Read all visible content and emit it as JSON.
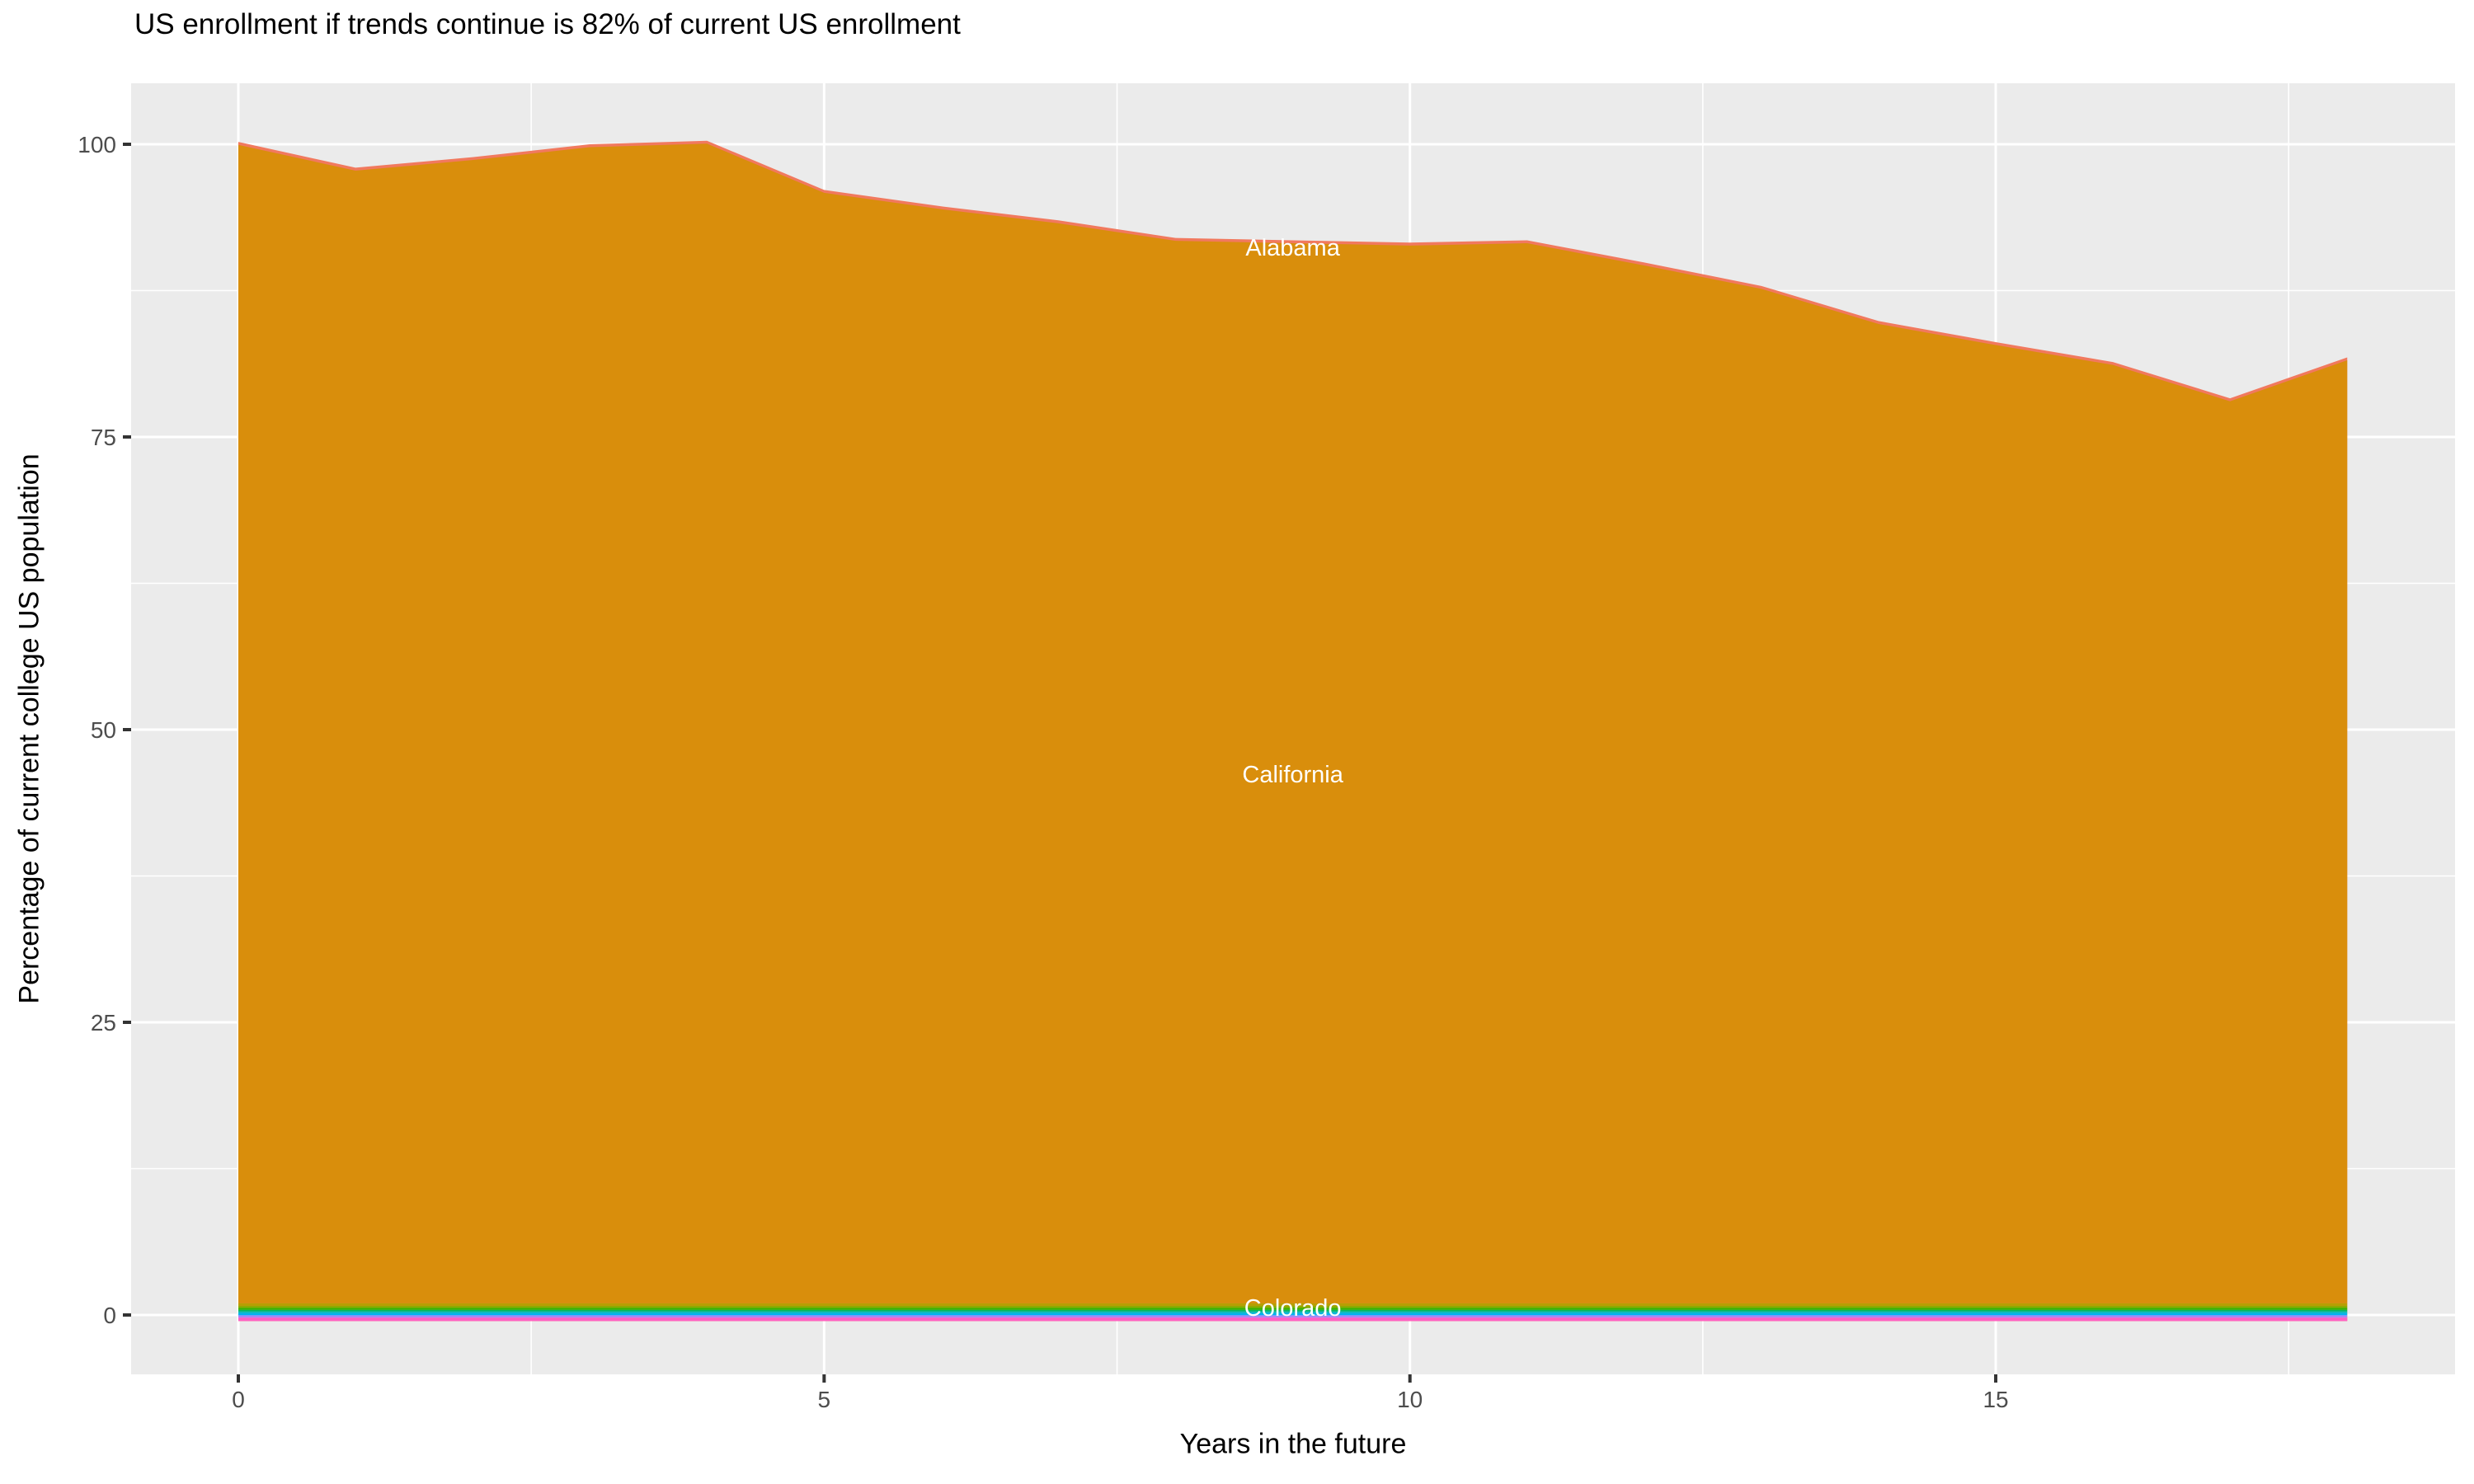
{
  "chart_data": {
    "type": "area",
    "stacked": true,
    "title": "US enrollment if trends continue is 82% of current US enrollment",
    "xlabel": "Years in the future",
    "ylabel": "Percentage of current college US population",
    "legend_position": "none",
    "grid": "on",
    "panel_color": "#EBEBEB",
    "grid_color": "#FFFFFF",
    "tick_color": "#333333",
    "tick_label_color": "#4D4D4D",
    "x": [
      0,
      1,
      2,
      3,
      4,
      5,
      6,
      7,
      8,
      9,
      10,
      11,
      12,
      13,
      14,
      15,
      16,
      17,
      18
    ],
    "x_ticks": [
      0,
      5,
      10,
      15
    ],
    "x_minor_ticks": [
      2.5,
      7.5,
      12.5,
      17.5
    ],
    "y_ticks": [
      0,
      25,
      50,
      75,
      100
    ],
    "y_minor_ticks": [
      12.5,
      37.5,
      62.5,
      87.5
    ],
    "xlim": [
      0,
      18
    ],
    "ylim": [
      -0.6,
      100.4
    ],
    "stack_total_pct": [
      100.2,
      98.0,
      98.9,
      100.0,
      100.3,
      96.1,
      94.7,
      93.5,
      92.0,
      91.8,
      91.6,
      91.8,
      89.9,
      87.9,
      84.9,
      83.1,
      81.4,
      78.3,
      81.8
    ],
    "top_sliver_band": {
      "label": "Alabama",
      "color": "#F1795E",
      "thickness_pct": 0.25
    },
    "main_band": {
      "label": "California",
      "color": "#D98E0C",
      "bottom_pct": 1.0
    },
    "bottom_strips": [
      {
        "color": "#B79F00",
        "from_pct": 1.0,
        "to_pct": 0.78
      },
      {
        "color": "#8CAB00",
        "from_pct": 0.78,
        "to_pct": 0.62
      },
      {
        "color": "#39B600",
        "from_pct": 0.62,
        "to_pct": 0.44
      },
      {
        "color": "#00BB62",
        "from_pct": 0.44,
        "to_pct": 0.3
      },
      {
        "color": "#00BFC4",
        "from_pct": 0.3,
        "to_pct": 0.16
      },
      {
        "color": "#00B4F0",
        "from_pct": 0.16,
        "to_pct": 0.0
      },
      {
        "color": "#7997FF",
        "from_pct": 0.0,
        "to_pct": -0.12
      },
      {
        "color": "#B983FF",
        "from_pct": -0.12,
        "to_pct": -0.24
      },
      {
        "color": "#FF61C3",
        "from_pct": -0.24,
        "to_pct": -0.52
      }
    ],
    "annotations": [
      {
        "label": "Alabama",
        "x": 9,
        "y_pct": 91.2,
        "color": "#FFFFFF"
      },
      {
        "label": "California",
        "x": 9,
        "y_pct": 46.2,
        "color": "#FFFFFF"
      },
      {
        "label": "Colorado",
        "x": 9,
        "y_pct": 0.62,
        "color": "#FFFFFF"
      }
    ]
  }
}
